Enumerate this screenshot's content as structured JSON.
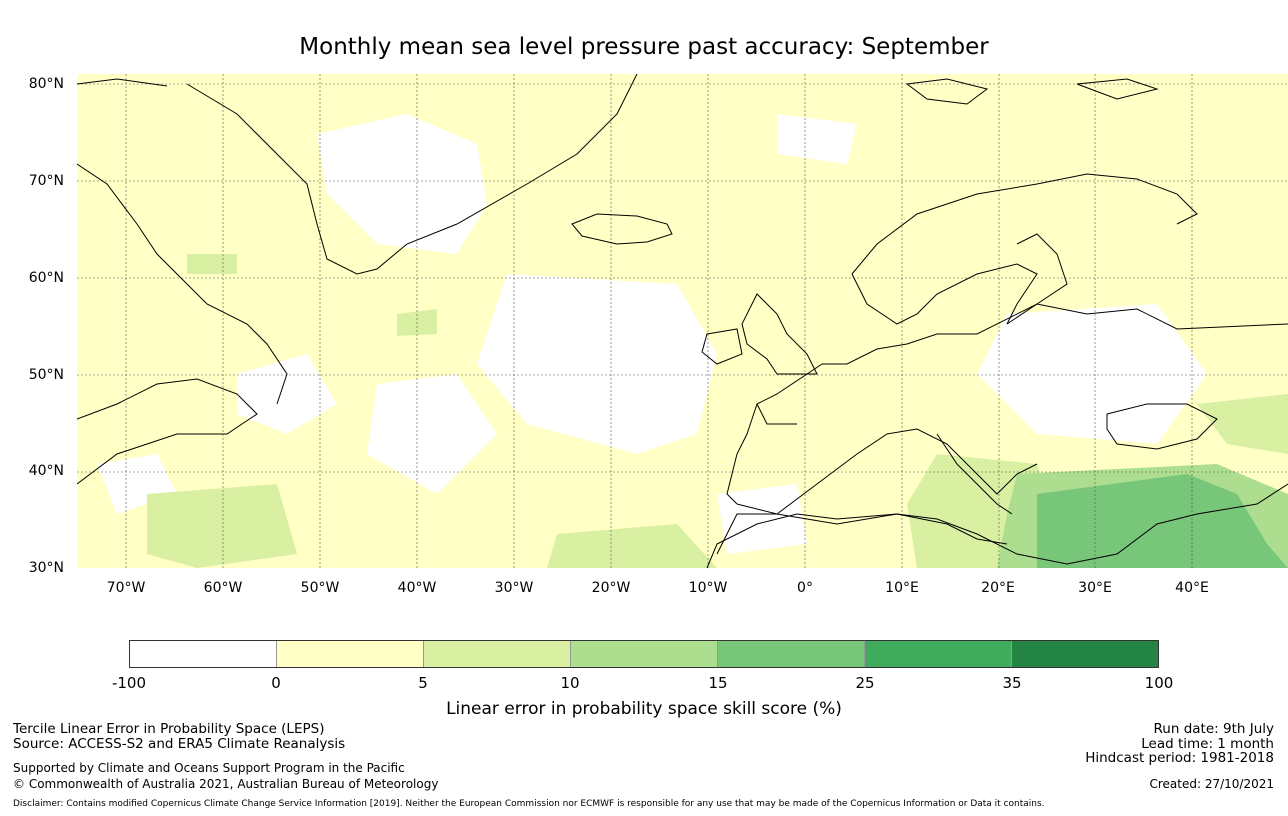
{
  "title": "Monthly mean sea level pressure past accuracy: September",
  "map": {
    "lat_labels": [
      "80°N",
      "70°N",
      "60°N",
      "50°N",
      "40°N",
      "30°N"
    ],
    "lon_labels": [
      "70°W",
      "60°W",
      "50°W",
      "40°W",
      "30°W",
      "20°W",
      "10°W",
      "0°",
      "10°E",
      "20°E",
      "30°E",
      "40°E"
    ],
    "gridlines": true
  },
  "colorbar": {
    "ticks": [
      "-100",
      "0",
      "5",
      "10",
      "15",
      "25",
      "35",
      "100"
    ],
    "colors": [
      "#ffffff",
      "#ffffc6",
      "#d9f0a3",
      "#addd8e",
      "#78c679",
      "#41ab5d",
      "#238443"
    ],
    "label": "Linear error in probability space skill score (%)"
  },
  "footer": {
    "left_line1": "Tercile Linear Error in Probability Space (LEPS)",
    "left_line2": "Source: ACCESS-S2 and ERA5 Climate Reanalysis",
    "support_line1": "Supported by Climate and Oceans Support Program in the Pacific",
    "support_line2": "© Commonwealth of Australia 2021, Australian Bureau of Meteorology",
    "run_date": "Run date: 9th July",
    "lead_time": "Lead time: 1 month",
    "hindcast": "Hindcast period: 1981-2018",
    "created": "Created: 27/10/2021",
    "disclaimer": "Disclaimer: Contains modified Copernicus Climate Change Service Information [2019]. Neither the European Commission nor ECMWF is responsible for any use that may be made of the Copernicus Information or Data it contains."
  }
}
